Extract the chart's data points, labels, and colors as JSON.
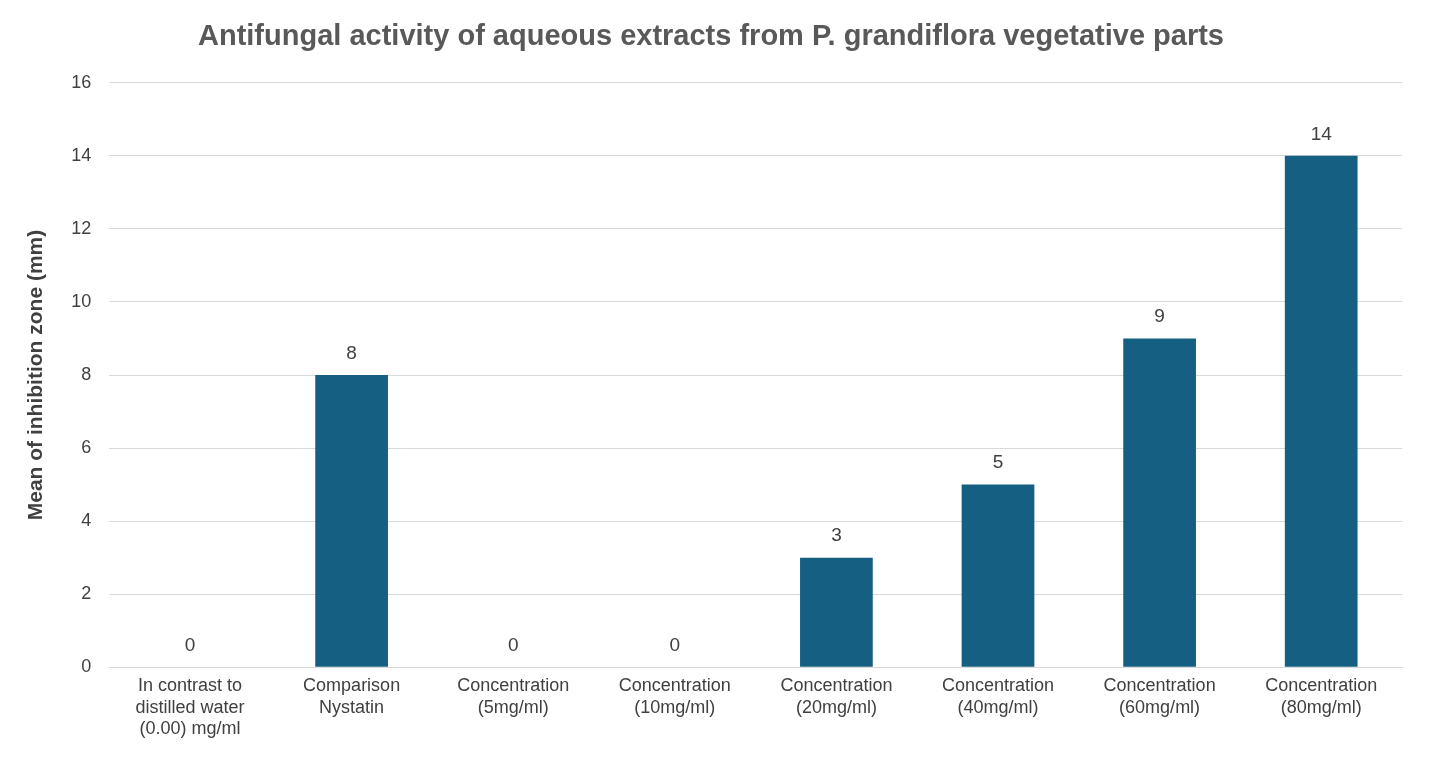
{
  "chart_data": {
    "type": "bar",
    "title": "Antifungal activity of aqueous extracts from P. grandiflora vegetative parts",
    "ylabel": "Mean of inhibition zone (mm)",
    "categories": [
      "In contrast to distilled water (0.00) mg/ml",
      "Comparison Nystatin",
      "Concentration (5mg/ml)",
      "Concentration (10mg/ml)",
      "Concentration (20mg/ml)",
      "Concentration (40mg/ml)",
      "Concentration (60mg/ml)",
      "Concentration (80mg/ml)"
    ],
    "values": [
      0,
      8,
      0,
      0,
      3,
      5,
      9,
      14
    ],
    "color": "#156082",
    "ylim": [
      0,
      16
    ],
    "yticks": [
      0,
      2,
      4,
      6,
      8,
      10,
      12,
      14,
      16
    ],
    "grid": "y",
    "data_labels": true,
    "legend": false
  }
}
